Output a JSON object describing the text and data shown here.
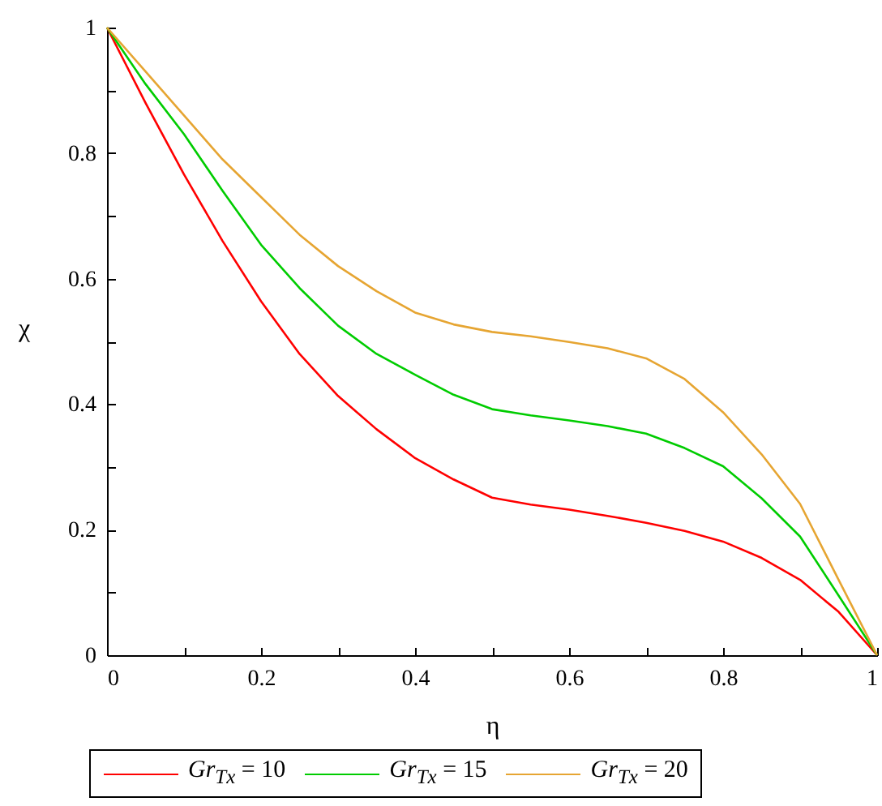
{
  "chart_data": {
    "type": "line",
    "xlabel": "η",
    "ylabel": "χ",
    "x": [
      0,
      0.05,
      0.1,
      0.15,
      0.2,
      0.25,
      0.3,
      0.35,
      0.4,
      0.45,
      0.5,
      0.55,
      0.6,
      0.65,
      0.7,
      0.75,
      0.8,
      0.85,
      0.9,
      0.95,
      1
    ],
    "series": [
      {
        "name": "Gr$_{Tx}$ = 10",
        "color": "#ff0000",
        "values": [
          1,
          0.88,
          0.766,
          0.66,
          0.564,
          0.48,
          0.413,
          0.36,
          0.314,
          0.28,
          0.251,
          0.24,
          0.232,
          0.222,
          0.211,
          0.198,
          0.181,
          0.155,
          0.12,
          0.069,
          0
        ]
      },
      {
        "name": "Gr$_{Tx}$ = 15",
        "color": "#00cc00",
        "values": [
          1,
          0.91,
          0.83,
          0.74,
          0.654,
          0.585,
          0.525,
          0.48,
          0.447,
          0.415,
          0.392,
          0.382,
          0.374,
          0.365,
          0.353,
          0.33,
          0.301,
          0.25,
          0.189,
          0.095,
          0
        ]
      },
      {
        "name": "Gr$_{Tx}$ = 20",
        "color": "#e6a532",
        "values": [
          1,
          0.93,
          0.86,
          0.79,
          0.73,
          0.67,
          0.62,
          0.58,
          0.546,
          0.527,
          0.515,
          0.508,
          0.499,
          0.489,
          0.473,
          0.44,
          0.387,
          0.32,
          0.241,
          0.12,
          0
        ]
      }
    ],
    "xlim": [
      0,
      1
    ],
    "ylim": [
      0,
      1
    ],
    "xticks": [
      0,
      {
        "value": 0.1,
        "label": null
      },
      0.2,
      {
        "value": 0.3,
        "label": null
      },
      0.4,
      {
        "value": 0.5,
        "label": null
      },
      0.6,
      {
        "value": 0.7,
        "label": null
      },
      0.8,
      {
        "value": 0.9,
        "label": null
      },
      1
    ],
    "yticks": [
      0,
      {
        "value": 0.1,
        "label": null
      },
      0.2,
      {
        "value": 0.3,
        "label": null
      },
      0.4,
      {
        "value": 0.5,
        "label": null
      },
      0.6,
      {
        "value": 0.7,
        "label": null
      },
      0.8,
      {
        "value": 0.9,
        "label": null
      },
      1
    ],
    "grid": false,
    "legend": "bottom",
    "line_style": "solid",
    "marker": "none"
  }
}
